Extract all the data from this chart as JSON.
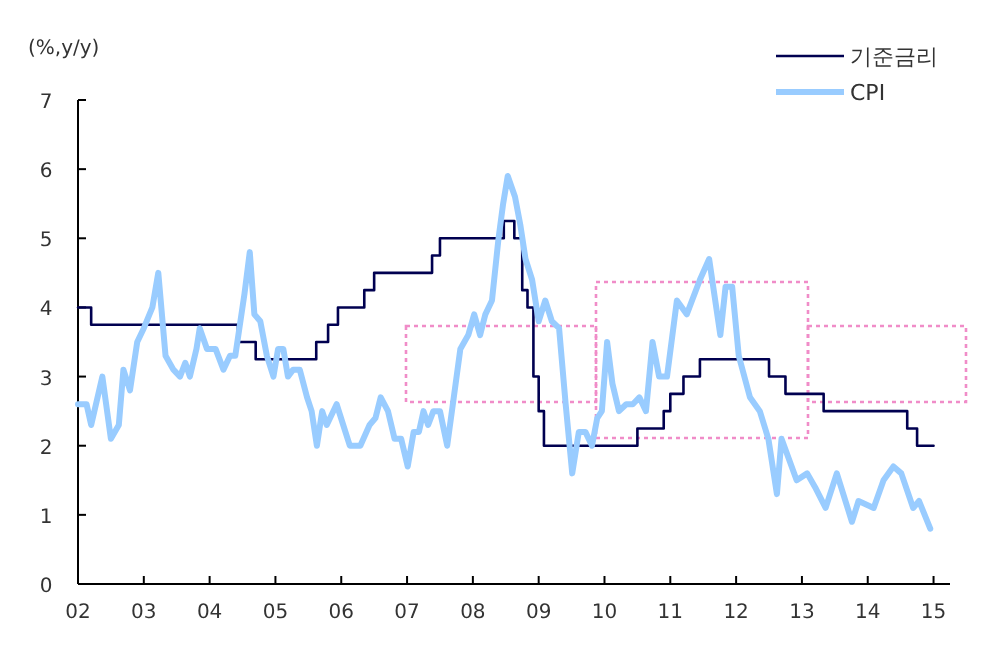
{
  "chart_data": {
    "type": "line",
    "ylabel": "(%,y/y)",
    "legend": "top right",
    "grid": false,
    "xlim": [
      2002,
      2015.25
    ],
    "ylim": [
      0,
      7
    ],
    "yticks": [
      0,
      1,
      2,
      3,
      4,
      5,
      6,
      7
    ],
    "xticks": [
      {
        "value": 2002,
        "label": "02"
      },
      {
        "value": 2003,
        "label": "03"
      },
      {
        "value": 2004,
        "label": "04"
      },
      {
        "value": 2005,
        "label": "05"
      },
      {
        "value": 2006,
        "label": "06"
      },
      {
        "value": 2007,
        "label": "07"
      },
      {
        "value": 2008,
        "label": "08"
      },
      {
        "value": 2009,
        "label": "09"
      },
      {
        "value": 2010,
        "label": "10"
      },
      {
        "value": 2011,
        "label": "11"
      },
      {
        "value": 2012,
        "label": "12"
      },
      {
        "value": 2013,
        "label": "13"
      },
      {
        "value": 2014,
        "label": "14"
      },
      {
        "value": 2015,
        "label": "15"
      }
    ],
    "series": [
      {
        "name": "기준금리",
        "type": "step",
        "color": "#000050",
        "x": [
          2002.0,
          2002.2,
          2004.43,
          2004.7,
          2005.62,
          2005.8,
          2005.95,
          2006.35,
          2006.5,
          2007.38,
          2007.5,
          2008.47,
          2008.63,
          2008.75,
          2008.83,
          2008.92,
          2009.0,
          2009.08,
          2010.5,
          2010.9,
          2011.0,
          2011.2,
          2011.45,
          2012.5,
          2012.75,
          2013.33,
          2014.6,
          2014.75,
          2015.0
        ],
        "values": [
          4.0,
          3.75,
          3.5,
          3.25,
          3.5,
          3.75,
          4.0,
          4.25,
          4.5,
          4.75,
          5.0,
          5.25,
          5.0,
          4.25,
          4.0,
          3.0,
          2.5,
          2.0,
          2.25,
          2.5,
          2.75,
          3.0,
          3.25,
          3.0,
          2.75,
          2.5,
          2.25,
          2.0,
          2.0
        ]
      },
      {
        "name": "CPI",
        "color": "#99ccff",
        "x": [
          2002.0,
          2002.13,
          2002.2,
          2002.37,
          2002.5,
          2002.62,
          2002.69,
          2002.79,
          2002.9,
          2003.0,
          2003.13,
          2003.22,
          2003.33,
          2003.45,
          2003.55,
          2003.63,
          2003.7,
          2003.8,
          2003.85,
          2003.96,
          2004.09,
          2004.21,
          2004.31,
          2004.39,
          2004.53,
          2004.61,
          2004.68,
          2004.77,
          2004.87,
          2004.97,
          2005.04,
          2005.12,
          2005.19,
          2005.27,
          2005.37,
          2005.48,
          2005.55,
          2005.63,
          2005.71,
          2005.78,
          2005.93,
          2006.03,
          2006.13,
          2006.29,
          2006.43,
          2006.52,
          2006.6,
          2006.71,
          2006.81,
          2006.91,
          2007.01,
          2007.1,
          2007.18,
          2007.25,
          2007.32,
          2007.4,
          2007.5,
          2007.61,
          2007.71,
          2007.81,
          2007.93,
          2008.02,
          2008.11,
          2008.19,
          2008.29,
          2008.39,
          2008.46,
          2008.53,
          2008.64,
          2008.72,
          2008.8,
          2008.9,
          2009.0,
          2009.1,
          2009.2,
          2009.31,
          2009.41,
          2009.51,
          2009.61,
          2009.71,
          2009.81,
          2009.89,
          2009.96,
          2010.04,
          2010.12,
          2010.22,
          2010.33,
          2010.43,
          2010.53,
          2010.63,
          2010.73,
          2010.83,
          2010.95,
          2011.1,
          2011.25,
          2011.45,
          2011.59,
          2011.76,
          2011.84,
          2011.94,
          2012.04,
          2012.21,
          2012.36,
          2012.49,
          2012.62,
          2012.69,
          2012.92,
          2013.08,
          2013.2,
          2013.36,
          2013.53,
          2013.76,
          2013.86,
          2014.09,
          2014.24,
          2014.39,
          2014.51,
          2014.69,
          2014.78,
          2014.95
        ],
        "values": [
          2.6,
          2.6,
          2.3,
          3.0,
          2.1,
          2.3,
          3.1,
          2.8,
          3.5,
          3.7,
          4.0,
          4.5,
          3.3,
          3.1,
          3.0,
          3.2,
          3.0,
          3.4,
          3.7,
          3.4,
          3.4,
          3.1,
          3.3,
          3.3,
          4.2,
          4.8,
          3.9,
          3.8,
          3.3,
          3.0,
          3.4,
          3.4,
          3.0,
          3.1,
          3.1,
          2.7,
          2.5,
          2.0,
          2.5,
          2.3,
          2.6,
          2.3,
          2.0,
          2.0,
          2.3,
          2.4,
          2.7,
          2.5,
          2.1,
          2.1,
          1.7,
          2.2,
          2.2,
          2.5,
          2.3,
          2.5,
          2.5,
          2.0,
          2.7,
          3.4,
          3.6,
          3.9,
          3.6,
          3.9,
          4.1,
          5.0,
          5.5,
          5.9,
          5.6,
          5.2,
          4.7,
          4.4,
          3.8,
          4.1,
          3.8,
          3.7,
          2.6,
          1.6,
          2.2,
          2.2,
          2.0,
          2.4,
          2.5,
          3.5,
          2.9,
          2.5,
          2.6,
          2.6,
          2.7,
          2.5,
          3.5,
          3.0,
          3.0,
          4.1,
          3.9,
          4.4,
          4.7,
          3.6,
          4.3,
          4.3,
          3.3,
          2.7,
          2.5,
          2.1,
          1.3,
          2.1,
          1.5,
          1.6,
          1.4,
          1.1,
          1.6,
          0.9,
          1.2,
          1.1,
          1.5,
          1.7,
          1.6,
          1.1,
          1.2,
          0.8
        ]
      }
    ]
  }
}
